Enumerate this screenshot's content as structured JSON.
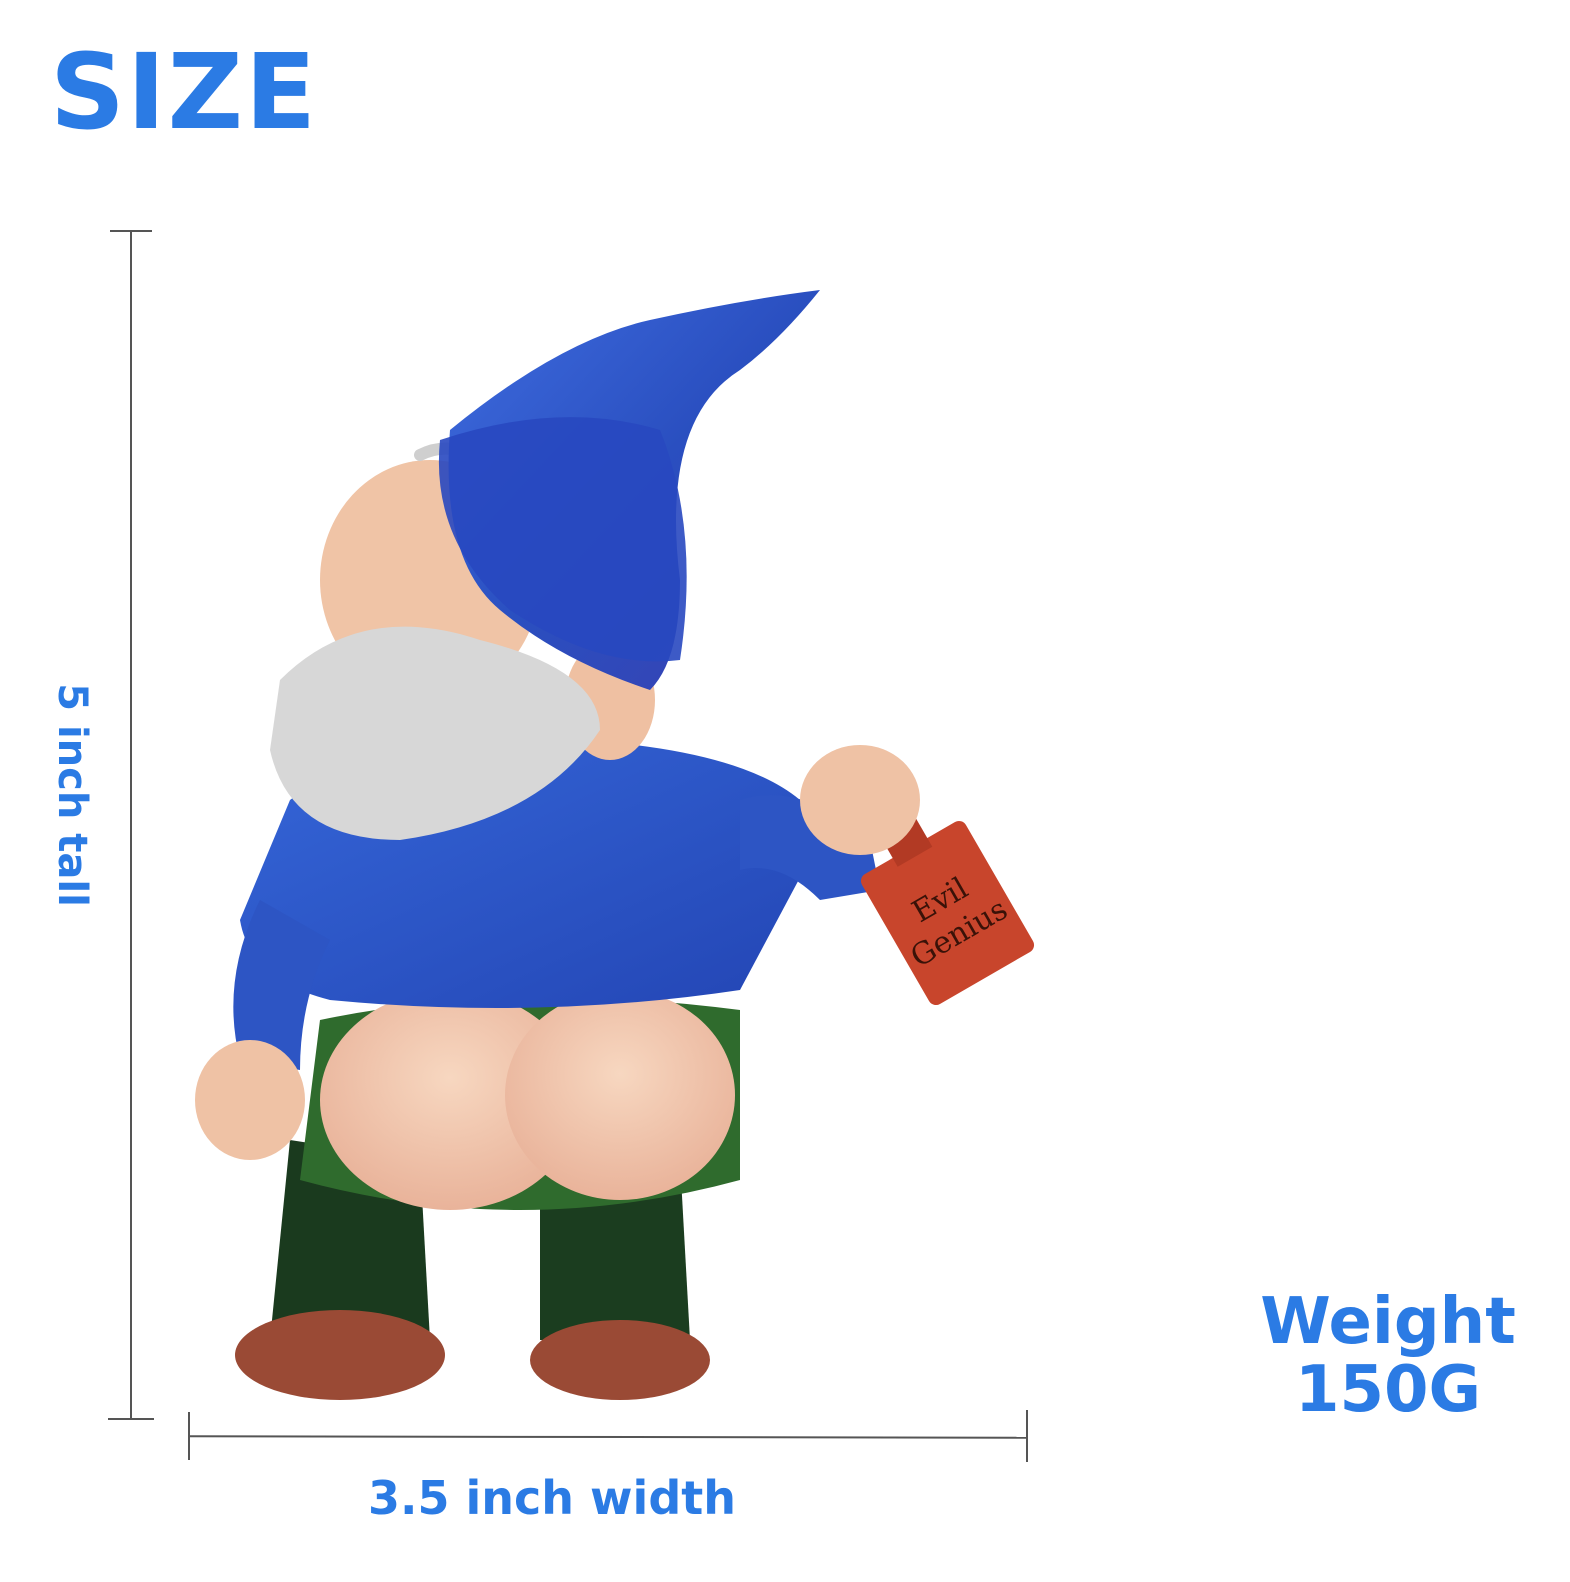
{
  "heading": "SIZE",
  "dimensions": {
    "height_label": "5 inch tall",
    "width_label": "3.5 inch width"
  },
  "weight": {
    "label": "Weight",
    "value": "150G"
  },
  "bottle_text": [
    "Evil",
    "Genius"
  ],
  "colors": {
    "accent": "#2b7be4",
    "hat": "#2f55c8",
    "shirt": "#2c58c8",
    "pants": "#1f4d22",
    "skin": "#f2c7a8",
    "beard": "#d7d7d7",
    "bottle": "#c8452c",
    "shoe": "#9a4a35"
  }
}
